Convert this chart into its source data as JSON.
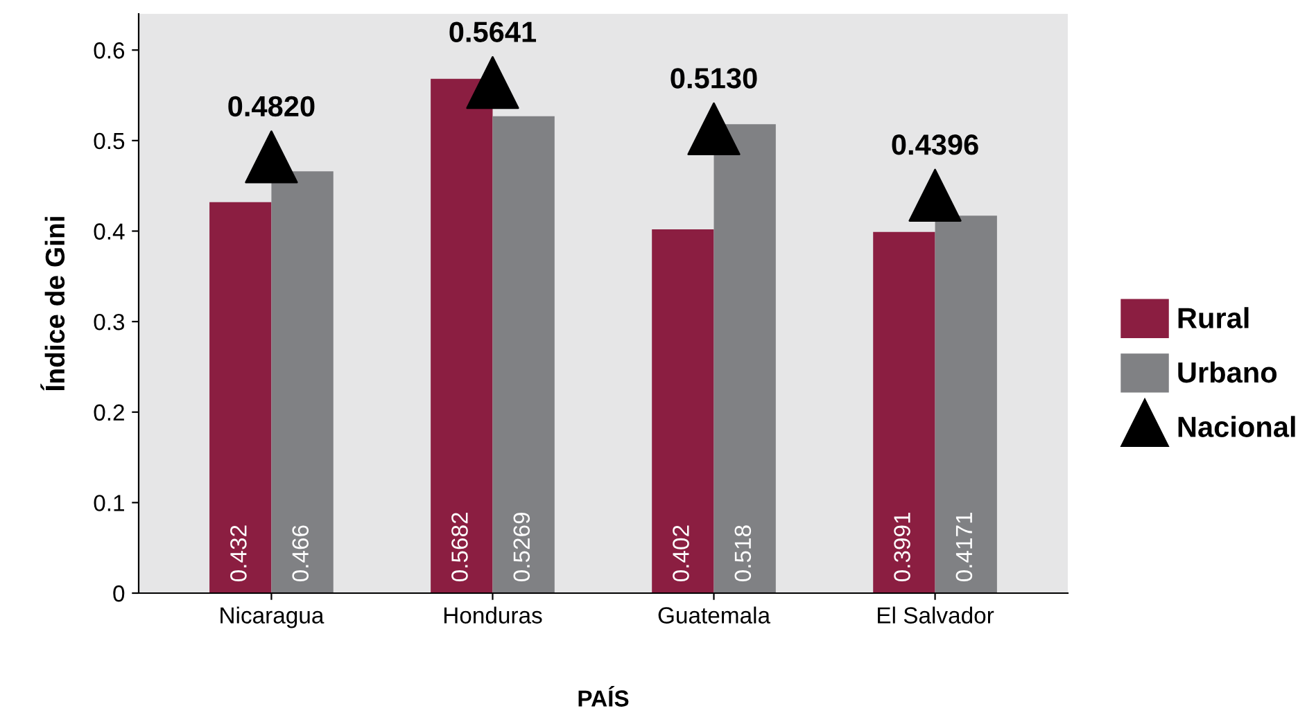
{
  "chart_data": {
    "type": "bar",
    "xlabel": "PAÍS",
    "ylabel": "Índice de Gini",
    "categories": [
      "Nicaragua",
      "Honduras",
      "Guatemala",
      "El Salvador"
    ],
    "series": [
      {
        "name": "Rural",
        "color": "#8b1e41",
        "values": [
          0.432,
          0.5682,
          0.402,
          0.3991
        ],
        "value_labels": [
          "0.432",
          "0.5682",
          "0.402",
          "0.3991"
        ]
      },
      {
        "name": "Urbano",
        "color": "#808184",
        "values": [
          0.466,
          0.5269,
          0.518,
          0.4171
        ],
        "value_labels": [
          "0.466",
          "0.5269",
          "0.518",
          "0.4171"
        ]
      },
      {
        "name": "Nacional",
        "type": "scatter",
        "color": "#000000",
        "marker": "triangle",
        "values": [
          0.482,
          0.5641,
          0.513,
          0.4396
        ],
        "value_labels": [
          "0.4820",
          "0.5641",
          "0.5130",
          "0.4396"
        ]
      }
    ],
    "ylim": [
      0,
      0.64
    ],
    "yticks": [
      0,
      0.1,
      0.2,
      0.3,
      0.4,
      0.5,
      0.6
    ],
    "grid": false,
    "legend": "right"
  }
}
